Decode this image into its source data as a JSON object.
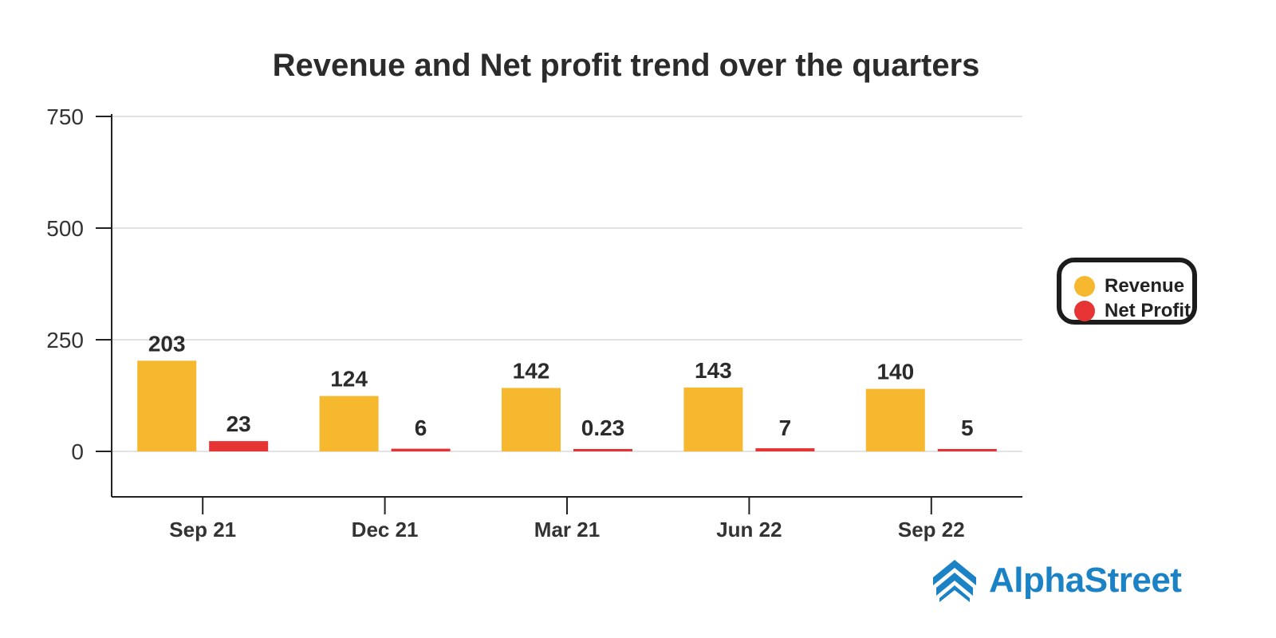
{
  "chart_data": {
    "type": "bar",
    "title": "Revenue and Net profit trend over the quarters",
    "categories": [
      "Sep 21",
      "Dec 21",
      "Mar 21",
      "Jun 22",
      "Sep 22"
    ],
    "series": [
      {
        "name": "Revenue",
        "color": "#f5b82e",
        "values": [
          203,
          124,
          142,
          143,
          140
        ],
        "labels": [
          "203",
          "124",
          "142",
          "143",
          "140"
        ]
      },
      {
        "name": "Net Profit",
        "color": "#e63333",
        "values": [
          23,
          6,
          0.23,
          7,
          5
        ],
        "labels": [
          "23",
          "6",
          "0.23",
          "7",
          "5"
        ]
      }
    ],
    "yticks": [
      "750",
      "500",
      "250",
      "0"
    ],
    "ylim": [
      -100,
      750
    ],
    "grid": true,
    "legend_position": "right"
  },
  "legend": {
    "items": [
      {
        "label": "Revenue",
        "color": "#f5b82e"
      },
      {
        "label": "Net Profit",
        "color": "#e63333"
      }
    ]
  },
  "brand": {
    "name": "AlphaStreet",
    "icon": "alphastreet-logo-icon",
    "color": "#1b82c5"
  }
}
